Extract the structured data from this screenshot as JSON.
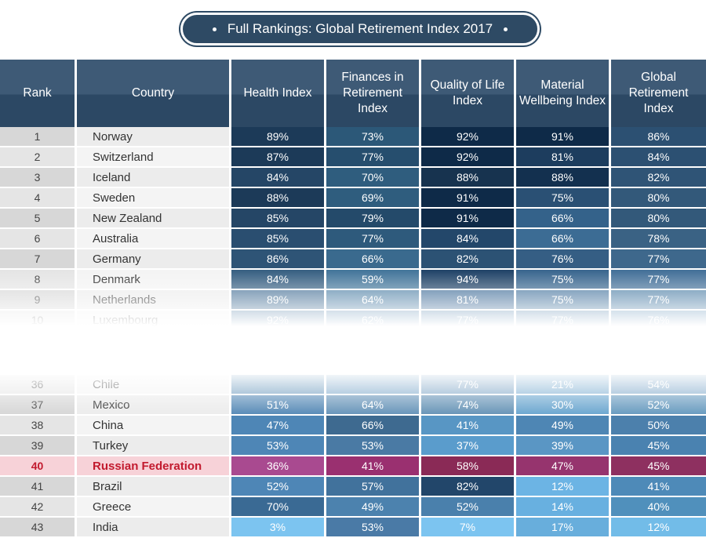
{
  "title": "Full Rankings: Global Retirement Index 2017",
  "columns": [
    "Rank",
    "Country",
    "Health Index",
    "Finances in Retirement Index",
    "Quality of Life Index",
    "Material Wellbeing Index",
    "Global Retirement Index"
  ],
  "rows": [
    {
      "rank": "1",
      "country": "Norway",
      "health": "89%",
      "finances": "73%",
      "quality": "92%",
      "material": "91%",
      "global": "86%",
      "colors": [
        "#1c3a58",
        "#2c5878",
        "#0e2a48",
        "#0e2a48",
        "#2c5072"
      ]
    },
    {
      "rank": "2",
      "country": "Switzerland",
      "health": "87%",
      "finances": "77%",
      "quality": "92%",
      "material": "81%",
      "global": "84%",
      "colors": [
        "#1c3a58",
        "#264e6e",
        "#0e2a48",
        "#1d3d5e",
        "#2c5072"
      ]
    },
    {
      "rank": "3",
      "country": "Iceland",
      "health": "84%",
      "finances": "70%",
      "quality": "88%",
      "material": "88%",
      "global": "82%",
      "colors": [
        "#254666",
        "#2f5d7e",
        "#17334f",
        "#13304f",
        "#2f5476"
      ]
    },
    {
      "rank": "4",
      "country": "Sweden",
      "health": "88%",
      "finances": "69%",
      "quality": "91%",
      "material": "75%",
      "global": "80%",
      "colors": [
        "#1c3a58",
        "#2f5d7e",
        "#0e2a48",
        "#2a5074",
        "#33597a"
      ]
    },
    {
      "rank": "5",
      "country": "New Zealand",
      "health": "85%",
      "finances": "79%",
      "quality": "91%",
      "material": "66%",
      "global": "80%",
      "colors": [
        "#254666",
        "#244a6a",
        "#0e2a48",
        "#34628a",
        "#33597a"
      ]
    },
    {
      "rank": "6",
      "country": "Australia",
      "health": "85%",
      "finances": "77%",
      "quality": "84%",
      "material": "66%",
      "global": "78%",
      "colors": [
        "#2a4e70",
        "#2e5a7c",
        "#23476a",
        "#3c6c94",
        "#3a6284"
      ]
    },
    {
      "rank": "7",
      "country": "Germany",
      "health": "86%",
      "finances": "66%",
      "quality": "82%",
      "material": "76%",
      "global": "77%",
      "colors": [
        "#2e5476",
        "#3a6a8e",
        "#2c5274",
        "#355e84",
        "#3e688c"
      ]
    },
    {
      "rank": "8",
      "country": "Denmark",
      "health": "84%",
      "finances": "59%",
      "quality": "94%",
      "material": "75%",
      "global": "77%",
      "colors": [
        "#3a6284",
        "#46789c",
        "#24466a",
        "#3c6890",
        "#46729a"
      ]
    },
    {
      "rank": "9",
      "country": "Netherlands",
      "health": "89%",
      "finances": "64%",
      "quality": "81%",
      "material": "75%",
      "global": "77%",
      "colors": [
        "#4a7498",
        "#5484a8",
        "#44709a",
        "#4a78a0",
        "#5282a8"
      ]
    },
    {
      "rank": "10",
      "country": "Luxembourg",
      "health": "92%",
      "finances": "62%",
      "quality": "77%",
      "material": "77%",
      "global": "76%",
      "colors": [
        "#6088ac",
        "#6a94b8",
        "#6690b4",
        "#6690b4",
        "#6e98bc"
      ]
    },
    {
      "rank": "36",
      "country": "Chile",
      "health": "",
      "finances": "",
      "quality": "77%",
      "material": "21%",
      "global": "54%",
      "colors": [
        "#6a98bc",
        "#7aa6c8",
        "#7aa2c4",
        "#7aacd0",
        "#7ca6c8"
      ]
    },
    {
      "rank": "37",
      "country": "Mexico",
      "health": "51%",
      "finances": "64%",
      "quality": "74%",
      "material": "30%",
      "global": "52%",
      "colors": [
        "#5a8cb8",
        "#6a96ba",
        "#6a96b8",
        "#6ea8d0",
        "#6a9cc0"
      ]
    },
    {
      "rank": "38",
      "country": "China",
      "health": "47%",
      "finances": "66%",
      "quality": "41%",
      "material": "49%",
      "global": "50%",
      "colors": [
        "#4e86b6",
        "#3e6a90",
        "#5896c4",
        "#4e86b4",
        "#4c80ac"
      ]
    },
    {
      "rank": "39",
      "country": "Turkey",
      "health": "53%",
      "finances": "53%",
      "quality": "37%",
      "material": "39%",
      "global": "45%",
      "colors": [
        "#4e86b6",
        "#4a7aa4",
        "#5a9ccc",
        "#5a96c4",
        "#4a82b0"
      ]
    },
    {
      "rank": "40",
      "country": "Russian Federation",
      "health": "36%",
      "finances": "41%",
      "quality": "58%",
      "material": "47%",
      "global": "45%",
      "colors": [
        "#a94a90",
        "#9a3070",
        "#8a2a56",
        "#96346e",
        "#8e3060"
      ],
      "highlight": true
    },
    {
      "rank": "41",
      "country": "Brazil",
      "health": "52%",
      "finances": "57%",
      "quality": "82%",
      "material": "12%",
      "global": "41%",
      "colors": [
        "#4e86b6",
        "#41729c",
        "#22466a",
        "#6cb4e4",
        "#4e8ab8"
      ]
    },
    {
      "rank": "42",
      "country": "Greece",
      "health": "70%",
      "finances": "49%",
      "quality": "52%",
      "material": "14%",
      "global": "40%",
      "colors": [
        "#3a6a94",
        "#4c82ae",
        "#4a80ac",
        "#68b0e0",
        "#5090bc"
      ]
    },
    {
      "rank": "43",
      "country": "India",
      "health": "3%",
      "finances": "53%",
      "quality": "7%",
      "material": "17%",
      "global": "12%",
      "colors": [
        "#7cc4f0",
        "#4a7aa6",
        "#7cc4f0",
        "#68aedc",
        "#72bce8"
      ]
    }
  ]
}
